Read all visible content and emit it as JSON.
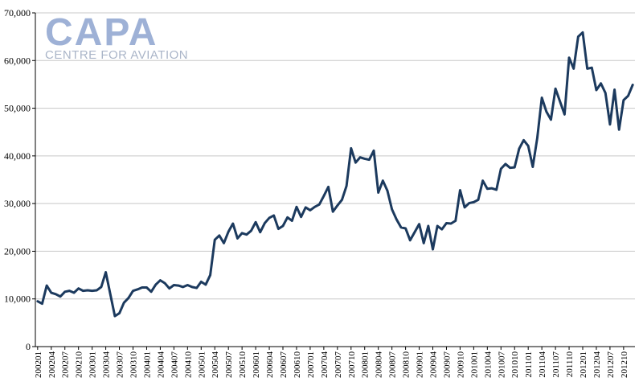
{
  "logo": {
    "main": "CAPA",
    "sub": "CENTRE FOR AVIATION"
  },
  "colors": {
    "line": "#1c3a5e",
    "grid": "#c8c8c8",
    "logo": "#9eb1d6"
  },
  "chart_data": {
    "type": "line",
    "title": "",
    "xlabel": "",
    "ylabel": "",
    "ylim": [
      0,
      70000
    ],
    "yticks": [
      0,
      10000,
      20000,
      30000,
      40000,
      50000,
      60000,
      70000
    ],
    "ytick_labels": [
      "0",
      "10,000",
      "20,000",
      "30,000",
      "40,000",
      "50,000",
      "60,000",
      "70,000"
    ],
    "grid": true,
    "x": [
      "200201",
      "200202",
      "200203",
      "200204",
      "200205",
      "200206",
      "200207",
      "200208",
      "200209",
      "200210",
      "200211",
      "200212",
      "200301",
      "200302",
      "200303",
      "200304",
      "200305",
      "200306",
      "200307",
      "200308",
      "200309",
      "200310",
      "200311",
      "200312",
      "200401",
      "200402",
      "200403",
      "200404",
      "200405",
      "200406",
      "200407",
      "200408",
      "200409",
      "200410",
      "200411",
      "200412",
      "200501",
      "200502",
      "200503",
      "200504",
      "200505",
      "200506",
      "200507",
      "200508",
      "200509",
      "200510",
      "200511",
      "200512",
      "200601",
      "200602",
      "200603",
      "200604",
      "200605",
      "200606",
      "200607",
      "200608",
      "200609",
      "200610",
      "200611",
      "200612",
      "200701",
      "200702",
      "200703",
      "200704",
      "200705",
      "200706",
      "200707",
      "200708",
      "200709",
      "200710",
      "200711",
      "200712",
      "200801",
      "200802",
      "200803",
      "200804",
      "200805",
      "200806",
      "200807",
      "200808",
      "200809",
      "200810",
      "200811",
      "200812",
      "200901",
      "200902",
      "200903",
      "200904",
      "200905",
      "200906",
      "200907",
      "200908",
      "200909",
      "200910",
      "200911",
      "200912",
      "201001",
      "201002",
      "201003",
      "201004",
      "201005",
      "201006",
      "201007",
      "201008",
      "201009",
      "201010",
      "201011",
      "201012",
      "201101",
      "201102",
      "201103",
      "201104",
      "201105",
      "201106",
      "201107",
      "201108",
      "201109",
      "201110",
      "201111",
      "201112",
      "201201",
      "201202",
      "201203",
      "201204",
      "201205",
      "201206",
      "201207",
      "201208",
      "201209",
      "201210",
      "201211",
      "201212"
    ],
    "x_tick_labels": [
      "200201",
      "200204",
      "200207",
      "200210",
      "200301",
      "200304",
      "200307",
      "200310",
      "200401",
      "200404",
      "200407",
      "200410",
      "200501",
      "200504",
      "200507",
      "200510",
      "200601",
      "200604",
      "200607",
      "200610",
      "200701",
      "200704",
      "200707",
      "200710",
      "200801",
      "200804",
      "200807",
      "200810",
      "200901",
      "200904",
      "200907",
      "200910",
      "201001",
      "201004",
      "201007",
      "201010",
      "201101",
      "201104",
      "201107",
      "201110",
      "201201",
      "201204",
      "201207",
      "201210"
    ],
    "series": [
      {
        "values": [
          9500,
          9000,
          12800,
          11300,
          11000,
          10500,
          11500,
          11700,
          11300,
          12200,
          11700,
          11800,
          11700,
          11800,
          12500,
          15600,
          11000,
          6400,
          7000,
          9200,
          10200,
          11700,
          12000,
          12400,
          12400,
          11500,
          13000,
          13900,
          13300,
          12200,
          12900,
          12800,
          12500,
          12900,
          12500,
          12300,
          13600,
          13000,
          15000,
          22400,
          23300,
          21700,
          24100,
          25800,
          22700,
          23800,
          23500,
          24300,
          26100,
          24000,
          25900,
          27000,
          27500,
          24700,
          25300,
          27100,
          26400,
          29300,
          27200,
          29200,
          28600,
          29300,
          29800,
          31600,
          33500,
          28300,
          29600,
          30800,
          33700,
          41600,
          38600,
          39700,
          39400,
          39200,
          41100,
          32300,
          34800,
          32700,
          28800,
          26700,
          25000,
          24800,
          22300,
          24000,
          25700,
          21700,
          25300,
          20400,
          25300,
          24600,
          25900,
          25800,
          26400,
          32800,
          29200,
          30100,
          30300,
          30800,
          34800,
          33100,
          33200,
          32900,
          37300,
          38300,
          37500,
          37600,
          41500,
          43300,
          42100,
          37700,
          43800,
          52200,
          49300,
          47600,
          54100,
          51400,
          48700,
          60600,
          58300,
          65000,
          65900,
          58300,
          58500,
          53800,
          55200,
          53200,
          46600,
          53900,
          45500,
          51700,
          52600,
          54900
        ]
      }
    ]
  }
}
